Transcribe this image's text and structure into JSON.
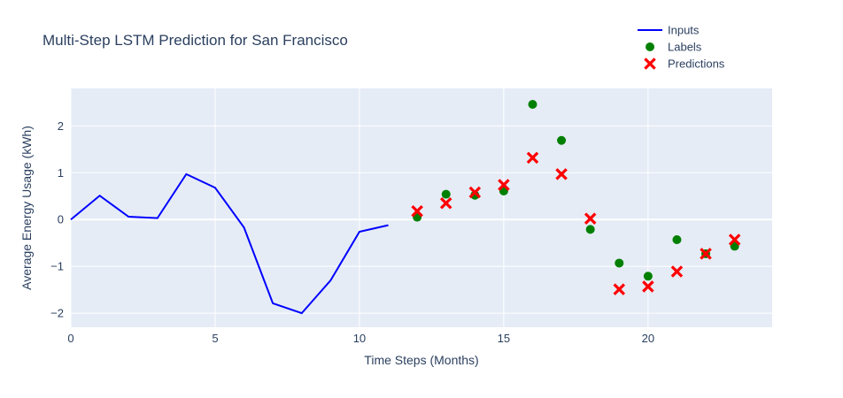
{
  "chart_data": {
    "type": "line",
    "title": "Multi-Step LSTM Prediction for San Francisco",
    "xlabel": "Time Steps (Months)",
    "ylabel": "Average Energy Usage (kWh)",
    "xlim": [
      0,
      24.3
    ],
    "ylim": [
      -2.3,
      2.8
    ],
    "x_ticks": [
      0,
      5,
      10,
      15,
      20
    ],
    "y_ticks": [
      -2,
      -1,
      0,
      1,
      2
    ],
    "grid": true,
    "legend_position": "top-right",
    "series": [
      {
        "name": "Inputs",
        "mode": "line",
        "color": "#0000ff",
        "x": [
          0,
          1,
          2,
          3,
          4,
          5,
          6,
          7,
          8,
          9,
          10,
          11
        ],
        "y": [
          0.0,
          0.51,
          0.06,
          0.03,
          0.97,
          0.68,
          -0.17,
          -1.79,
          -2.0,
          -1.3,
          -0.26,
          -0.12
        ]
      },
      {
        "name": "Labels",
        "mode": "markers",
        "marker": "circle",
        "color": "#008000",
        "x": [
          12,
          13,
          14,
          15,
          16,
          17,
          18,
          19,
          20,
          21,
          22,
          23
        ],
        "y": [
          0.05,
          0.54,
          0.52,
          0.61,
          2.46,
          1.69,
          -0.21,
          -0.93,
          -1.21,
          -0.43,
          -0.73,
          -0.57
        ]
      },
      {
        "name": "Predictions",
        "mode": "markers",
        "marker": "x",
        "color": "#ff0000",
        "x": [
          12,
          13,
          14,
          15,
          16,
          17,
          18,
          19,
          20,
          21,
          22,
          23
        ],
        "y": [
          0.18,
          0.35,
          0.58,
          0.74,
          1.32,
          0.97,
          0.02,
          -1.49,
          -1.43,
          -1.11,
          -0.73,
          -0.43
        ]
      }
    ]
  }
}
